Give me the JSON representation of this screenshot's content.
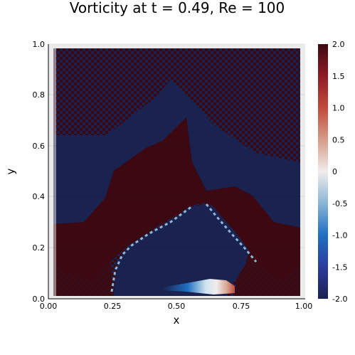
{
  "chart_data": {
    "type": "heatmap",
    "title": "Vorticity at t = 0.49, Re = 100",
    "xlabel": "x",
    "ylabel": "y",
    "xlim": [
      0.0,
      1.0
    ],
    "ylim": [
      0.0,
      1.0
    ],
    "x_ticks": [
      "0.00",
      "0.25",
      "0.50",
      "0.75",
      "1.00"
    ],
    "y_ticks": [
      "0.0",
      "0.2",
      "0.4",
      "0.6",
      "0.8",
      "1.0"
    ],
    "colorbar": {
      "range": [
        -2.0,
        2.0
      ],
      "ticks": [
        "2.0",
        "1.5",
        "1.0",
        "0.5",
        "0",
        "-0.5",
        "-1.0",
        "-1.5",
        "-2.0"
      ],
      "colormap": "balance",
      "low_color": "#1a2250",
      "mid_color": "#f1ecec",
      "high_color": "#3c0912"
    },
    "grid": true,
    "regions": [
      {
        "name": "negative vorticity core",
        "value": -2.0
      },
      {
        "name": "positive vorticity band",
        "value": 2.0
      },
      {
        "name": "upper checkerboard region",
        "value": 2.0
      },
      {
        "name": "jet near bottom",
        "value": 0.0
      }
    ]
  }
}
